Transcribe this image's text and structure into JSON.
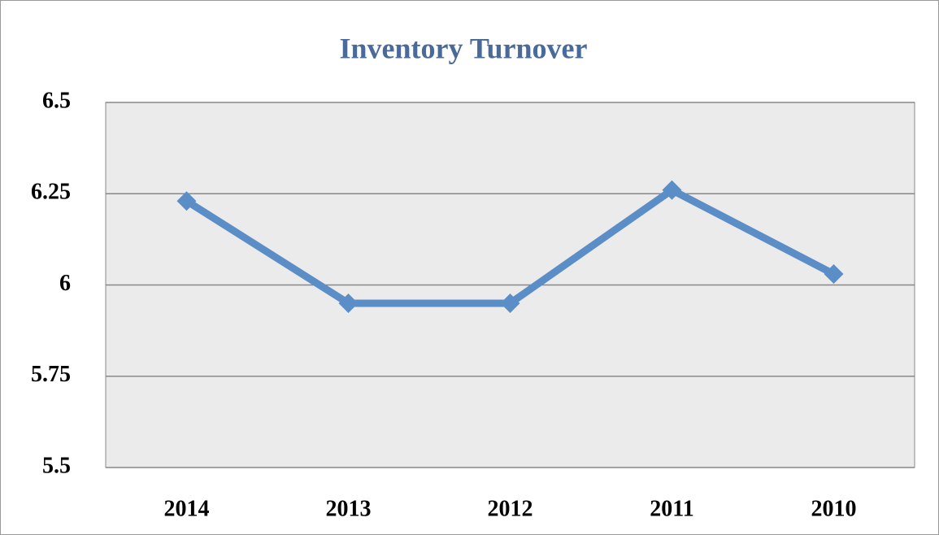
{
  "chart_data": {
    "type": "line",
    "title": "Inventory Turnover",
    "categories": [
      "2014",
      "2013",
      "2012",
      "2011",
      "2010"
    ],
    "series": [
      {
        "name": "Inventory Turnover",
        "color": "#5b8ec7",
        "values": [
          6.23,
          5.95,
          5.95,
          6.26,
          6.03
        ]
      }
    ],
    "ylim": [
      5.5,
      6.5
    ],
    "yticks": [
      5.5,
      5.75,
      6,
      6.25,
      6.5
    ],
    "grid": true
  }
}
